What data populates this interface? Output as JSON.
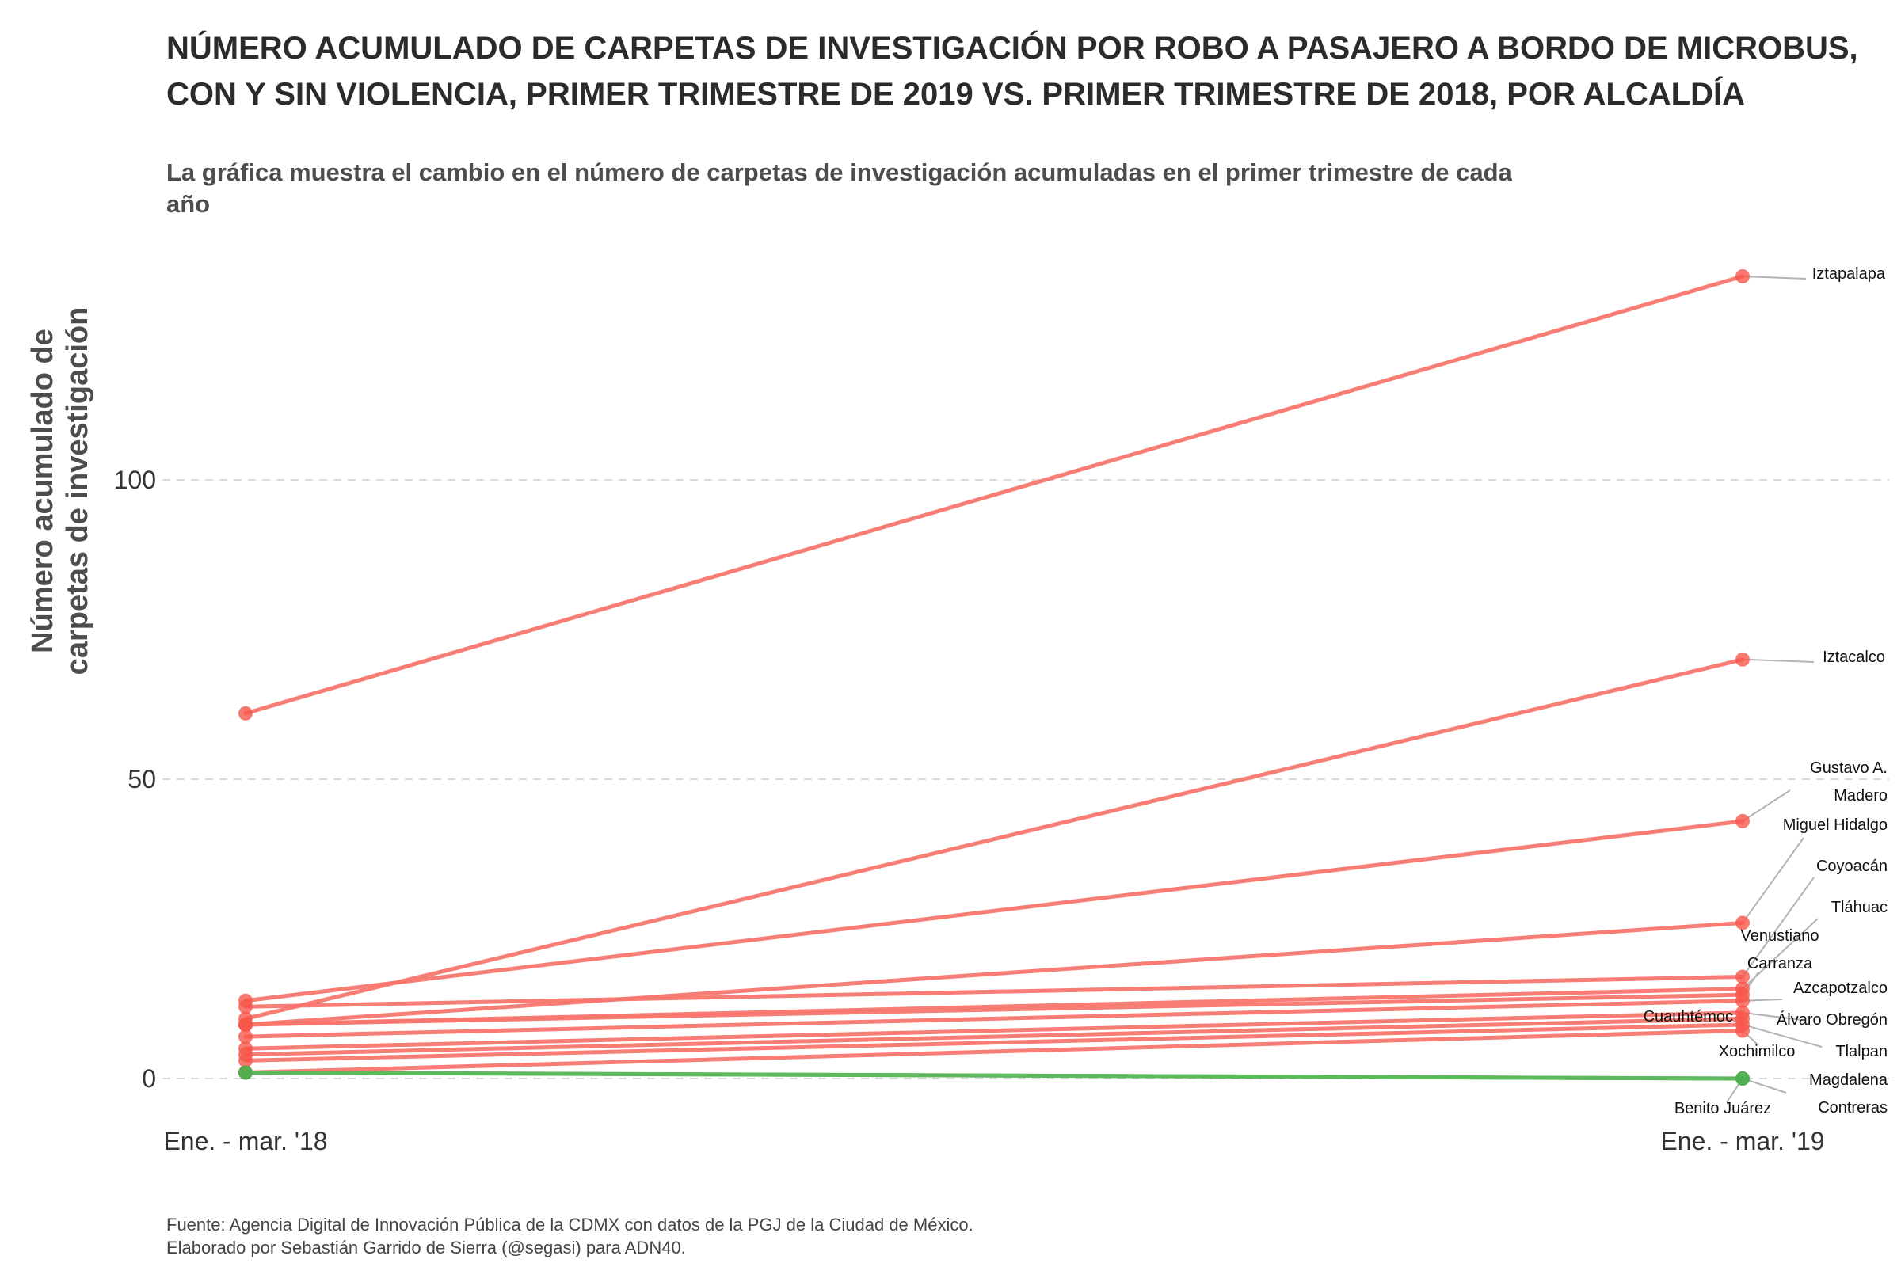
{
  "chart_data": {
    "type": "line",
    "title": "NÚMERO ACUMULADO DE CARPETAS DE INVESTIGACIÓN POR ROBO A PASAJERO A BORDO DE MICROBUS, CON Y SIN VIOLENCIA, PRIMER TRIMESTRE DE 2019 VS. PRIMER TRIMESTRE DE 2018, POR ALCALDÍA",
    "subtitle": "La gráfica muestra el cambio en el número de carpetas de investigación acumuladas en el primer trimestre de cada año",
    "ylabel_lines": [
      "Número acumulado de",
      "carpetas de investigación"
    ],
    "xlabel": "",
    "categories": [
      "Ene. - mar. '18",
      "Ene. - mar. '19"
    ],
    "ylim": [
      -5,
      140
    ],
    "yticks": [
      0,
      50,
      100
    ],
    "grid": "horizontal dashed",
    "colors": {
      "increase": "#f8766d",
      "decrease": "#5cb85c",
      "point_increase": "#f8564b",
      "point_decrease": "#4cae4c"
    },
    "series": [
      {
        "name": "Iztapalapa",
        "values": [
          61,
          134
        ]
      },
      {
        "name": "Iztacalco",
        "values": [
          10,
          70
        ]
      },
      {
        "name": "Gustavo A. Madero",
        "values": [
          13,
          43
        ]
      },
      {
        "name": "Miguel Hidalgo",
        "values": [
          9,
          26
        ]
      },
      {
        "name": "Coyoacán",
        "values": [
          12,
          17
        ]
      },
      {
        "name": "Tláhuac",
        "values": [
          9,
          15
        ]
      },
      {
        "name": "Venustiano Carranza",
        "values": [
          9,
          14
        ]
      },
      {
        "name": "Azcapotzalco",
        "values": [
          7,
          13
        ]
      },
      {
        "name": "Álvaro Obregón",
        "values": [
          5,
          11
        ]
      },
      {
        "name": "Cuauhtémoc",
        "values": [
          4,
          10
        ]
      },
      {
        "name": "Tlalpan",
        "values": [
          3,
          9
        ]
      },
      {
        "name": "Xochimilco",
        "values": [
          1,
          8
        ]
      },
      {
        "name": "Magdalena Contreras",
        "values": [
          1,
          0
        ]
      },
      {
        "name": "Benito Juárez",
        "values": [
          1,
          0
        ]
      }
    ]
  },
  "callout_labels": [
    [
      "Iztapalapa"
    ],
    [
      "Iztacalco"
    ],
    [
      "Gustavo A.",
      "Madero"
    ],
    [
      "Miguel Hidalgo"
    ],
    [
      "Coyoacán"
    ],
    [
      "Tláhuac"
    ],
    [
      "Venustiano",
      "Carranza"
    ],
    [
      "Azcapotzalco"
    ],
    [
      "Álvaro Obregón"
    ],
    [
      "Cuauhtémoc"
    ],
    [
      "Tlalpan"
    ],
    [
      "Xochimilco"
    ],
    [
      "Magdalena",
      "Contreras"
    ],
    [
      "Benito Juárez"
    ]
  ],
  "caption": {
    "line1": "Fuente: Agencia Digital de Innovación Pública de la CDMX con datos de la PGJ de la Ciudad de México.",
    "line2": "Elaborado por Sebastián Garrido de Sierra (@segasi) para ADN40."
  }
}
